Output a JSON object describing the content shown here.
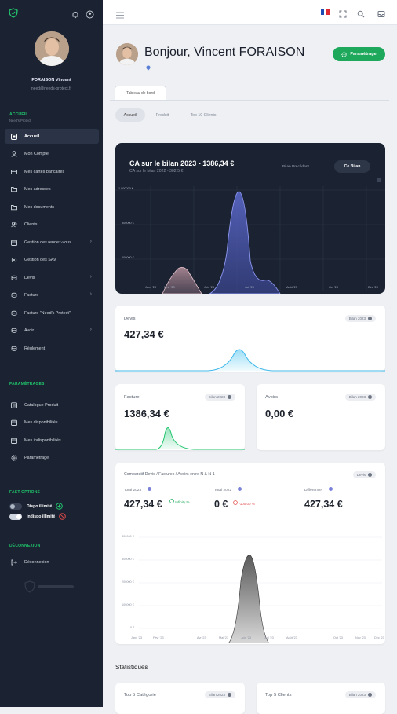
{
  "sidebar": {
    "user_name": "FORAISON Vincent",
    "user_email": "need@needs-protect.fr",
    "section_accueil": "ACCUEIL",
    "section_accueil_sub": "Need's Protect",
    "items": [
      {
        "label": "Accueil",
        "icon": "home-icon"
      },
      {
        "label": "Mon Compte",
        "icon": "user-icon"
      },
      {
        "label": "Mes cartes bancaires",
        "icon": "card-icon"
      },
      {
        "label": "Mes adresses",
        "icon": "folder-icon"
      },
      {
        "label": "Mes documents",
        "icon": "folder-icon"
      },
      {
        "label": "Clients",
        "icon": "users-icon"
      },
      {
        "label": "Gestion des rendez-vous",
        "icon": "calendar-icon"
      },
      {
        "label": "Gestion des SAV",
        "icon": "broadcast-icon"
      },
      {
        "label": "Devis",
        "icon": "coins-icon"
      },
      {
        "label": "Facture",
        "icon": "coins-icon"
      },
      {
        "label": "Facture \"Need's Protect\"",
        "icon": "coins-icon"
      },
      {
        "label": "Avoir",
        "icon": "coins-icon"
      },
      {
        "label": "Règlement",
        "icon": "coins-icon"
      }
    ],
    "section_param": "PARAMÈTRAGES",
    "section_param_sub": "...",
    "items2": [
      {
        "label": "Catalogue Produit",
        "icon": "catalog-icon"
      },
      {
        "label": "Mes disponibilités",
        "icon": "calendar-icon"
      },
      {
        "label": "Mes indisponibilités",
        "icon": "calendar-icon"
      },
      {
        "label": "Paramètrage",
        "icon": "gear-icon"
      }
    ],
    "section_opt": "FAST OPTIONS",
    "toggle1": "Dispo illimité",
    "toggle2": "Indispo illimité",
    "section_deco": "DÉCONNEXION",
    "logout": "Déconnexion"
  },
  "header": {
    "greeting": "Bonjour, Vincent FORAISON",
    "settings_button": "Paramètrage",
    "tab": "Tableau de bord",
    "pills": [
      "Accueil",
      "Produit",
      "Top 10 Clients"
    ]
  },
  "dark_chart": {
    "title": "CA sur le bilan 2023 - 1386,34 €",
    "subtitle": "CA sur le bilan 2022 - 302,5 €",
    "btn_prev": "Bilan Précédent",
    "btn_current": "Ce Bilan",
    "y_ticks": [
      "1 000000 €",
      "800000 €",
      "600000 €"
    ],
    "x_ticks": [
      "Janv '23",
      "Févr '23",
      "Mars '23",
      "Juin '23",
      "Juil '23",
      "Août '23",
      "Oct '23",
      "Déc '23"
    ]
  },
  "devis": {
    "label": "Devis",
    "badge": "Bilan 2023",
    "value": "427,34 €"
  },
  "facture": {
    "label": "Facture",
    "badge": "Bilan 2023",
    "value": "1386,34 €"
  },
  "avoirs": {
    "label": "Avoirs",
    "badge": "Bilan 2023",
    "value": "0,00 €"
  },
  "compare": {
    "title": "Comparatif Devis / Factures / Avoirs entre N & N-1",
    "badge": "Devis",
    "total_2023_label": "Total 2023",
    "total_2023_value": "427,34 €",
    "trend_up": "Infinity %",
    "total_2022_label": "Total 2022",
    "total_2022_value": "0 €",
    "trend_down": "-100.00 %",
    "diff_label": "Différence",
    "diff_value": "427,34 €",
    "y_ticks": [
      "400000 €",
      "300000 €",
      "200000 €",
      "100000 €",
      "0 €"
    ],
    "x_ticks": [
      "Janv '23",
      "Févr '23",
      "Avr '23",
      "Mai '23",
      "Juin '23",
      "Juil '23",
      "Août '23",
      "Oct '23",
      "Nov '23",
      "Déc '23"
    ]
  },
  "stats": {
    "title": "Statistiques",
    "top_cat": "Top 5 Catégorie",
    "top_cat_badge": "Bilan 2023",
    "top_clients": "Top 5 Clients",
    "top_clients_badge": "Bilan 2023"
  },
  "colors": {
    "sidebar": "#1b2332",
    "accent_green": "#1ea85b",
    "devis_curve": "#4cc4f0",
    "facture_curve": "#2ec97a",
    "avoirs_line": "#e05a5a"
  }
}
